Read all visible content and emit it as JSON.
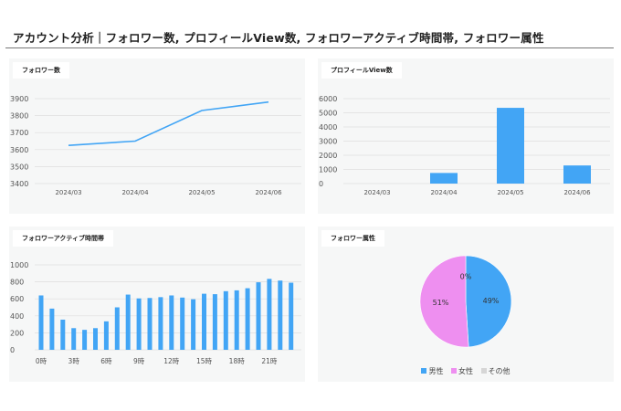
{
  "header": {
    "title": "アカウント分析｜フォロワー数, プロフィールView数, フォロワーアクティブ時間帯, フォロワー属性"
  },
  "colors": {
    "primary": "#42a5f5",
    "female": "#ee8ff0",
    "other": "#d6d6d6",
    "grid": "#dedede"
  },
  "chart_data": [
    {
      "id": "followers",
      "type": "line",
      "title": "フォロワー数",
      "categories": [
        "2024/03",
        "2024/04",
        "2024/05",
        "2024/06"
      ],
      "values": [
        3625,
        3650,
        3830,
        3880
      ],
      "ylim": [
        3400,
        3900
      ],
      "yticks": [
        "3900",
        "3800",
        "3700",
        "3600",
        "3500",
        "3400"
      ]
    },
    {
      "id": "profile_views",
      "type": "bar",
      "title": "プロフィールView数",
      "categories": [
        "2024/03",
        "2024/04",
        "2024/05",
        "2024/06"
      ],
      "values": [
        0,
        750,
        5350,
        1280
      ],
      "ylim": [
        0,
        6000
      ],
      "yticks": [
        "6000",
        "5000",
        "4000",
        "3000",
        "2000",
        "1000",
        "0"
      ]
    },
    {
      "id": "active_hours",
      "type": "bar",
      "title": "フォロワーアクティブ時間帯",
      "categories": [
        "0時",
        "1時",
        "2時",
        "3時",
        "4時",
        "5時",
        "6時",
        "7時",
        "8時",
        "9時",
        "10時",
        "11時",
        "12時",
        "13時",
        "14時",
        "15時",
        "16時",
        "17時",
        "18時",
        "19時",
        "20時",
        "21時",
        "22時",
        "23時"
      ],
      "values": [
        640,
        485,
        355,
        255,
        235,
        255,
        335,
        500,
        650,
        605,
        610,
        620,
        640,
        615,
        595,
        660,
        655,
        690,
        700,
        725,
        795,
        835,
        815,
        790
      ],
      "xtick_labels": [
        "0時",
        "3時",
        "6時",
        "9時",
        "12時",
        "15時",
        "18時",
        "21時"
      ],
      "ylim": [
        0,
        1000
      ],
      "yticks": [
        "1000",
        "800",
        "600",
        "400",
        "200",
        "0"
      ]
    },
    {
      "id": "follower_attributes",
      "type": "pie",
      "title": "フォロワー属性",
      "slices": [
        {
          "label": "男性",
          "value": 49,
          "pct_label": "49%",
          "color": "#42a5f5"
        },
        {
          "label": "女性",
          "value": 51,
          "pct_label": "51%",
          "color": "#ee8ff0"
        },
        {
          "label": "その他",
          "value": 0,
          "pct_label": "0%",
          "color": "#d6d6d6"
        }
      ]
    }
  ]
}
